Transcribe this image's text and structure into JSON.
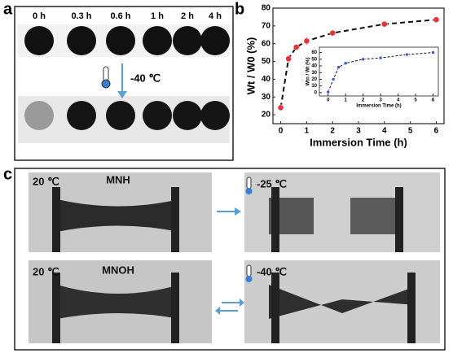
{
  "panel_labels": [
    "a",
    "b",
    "c"
  ],
  "panel_a": {
    "times": [
      "0 h",
      "0.3 h",
      "0.6 h",
      "1 h",
      "2 h",
      "4 h"
    ],
    "condition": "-40 ℃"
  },
  "panel_c": {
    "top_left": "20 ℃",
    "top_name": "MNH",
    "top_right": "-25 ℃",
    "bottom_left": "20 ℃",
    "bottom_name": "MNOH",
    "bottom_right": "-40 ℃"
  },
  "chart_data": [
    {
      "type": "line",
      "xlabel": "Immersion Time (h)",
      "ylabel": "Wt / W0 (%)",
      "xlim": [
        -0.3,
        6.3
      ],
      "xticks": [
        0,
        1,
        2,
        3,
        4,
        5,
        6
      ],
      "ylim": [
        15,
        80
      ],
      "yticks": [
        20,
        30,
        40,
        50,
        60,
        70,
        80
      ],
      "x": [
        0,
        0.3,
        0.6,
        1,
        2,
        4,
        6
      ],
      "series": [
        {
          "color": "#e8333a",
          "values": [
            24,
            51.5,
            58,
            61.5,
            66,
            71,
            73.5
          ],
          "errors": [
            1.5,
            2,
            1.5,
            2,
            1.5,
            1.5,
            1.2
          ]
        }
      ]
    },
    {
      "type": "line",
      "xlabel": "Immersion Time (h)",
      "ylabel": "Wtn / Wt (%)",
      "xlim": [
        -0.5,
        6.3
      ],
      "xticks": [
        0,
        1,
        2,
        3,
        4,
        5,
        6
      ],
      "ylim": [
        -5,
        68
      ],
      "yticks": [
        0,
        10,
        20,
        30,
        40,
        50,
        60
      ],
      "x": [
        0,
        0.3,
        0.6,
        1,
        2,
        3,
        4.5,
        6
      ],
      "series": [
        {
          "color": "#3b5bc4",
          "values": [
            1,
            20,
            38,
            44,
            50,
            52,
            57,
            60
          ]
        }
      ]
    }
  ]
}
